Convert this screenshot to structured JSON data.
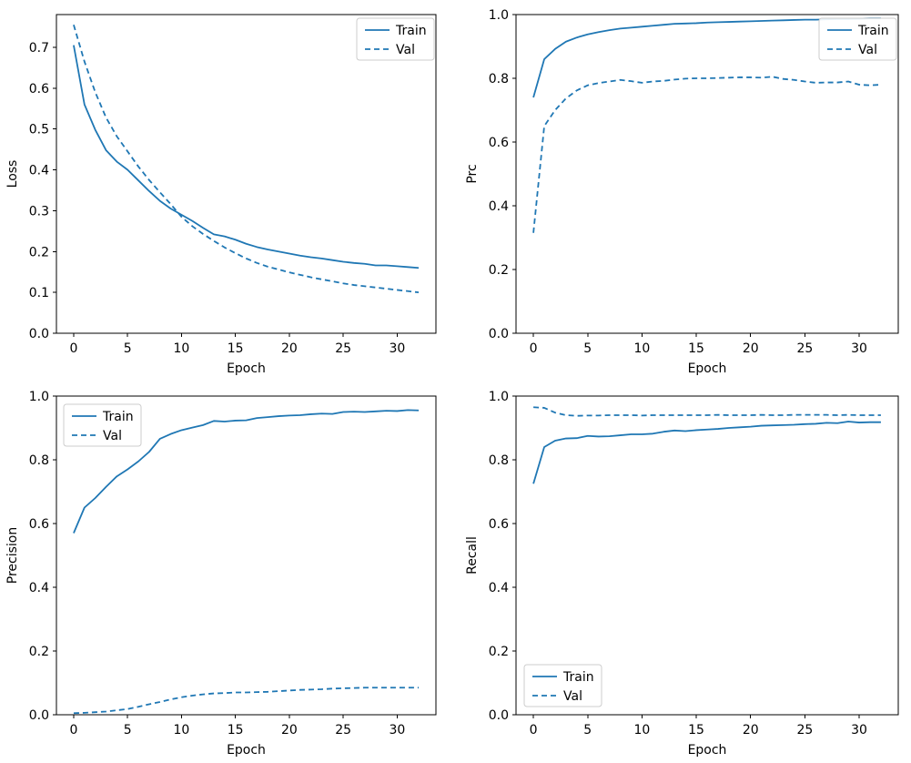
{
  "style": {
    "line_color": "#1f77b4",
    "spine_color": "#000000",
    "text_color": "#000000",
    "legend_border_color": "#cccccc",
    "legend_bg_color": "#ffffff",
    "background": "#ffffff"
  },
  "legend_labels": {
    "train": "Train",
    "val": "Val"
  },
  "chart_data": [
    {
      "type": "line",
      "title": "",
      "ylabel": "Loss",
      "xlabel": "Epoch",
      "xlim": [
        -1.6,
        33.6
      ],
      "ylim": [
        0,
        0.78
      ],
      "xticks": [
        0,
        5,
        10,
        15,
        20,
        25,
        30
      ],
      "xtick_labels": [
        "0",
        "5",
        "10",
        "15",
        "20",
        "25",
        "30"
      ],
      "yticks": [
        0,
        0.1,
        0.2,
        0.3,
        0.4,
        0.5,
        0.6,
        0.7
      ],
      "ytick_labels": [
        "0.0",
        "0.1",
        "0.2",
        "0.3",
        "0.4",
        "0.5",
        "0.6",
        "0.7"
      ],
      "grid": false,
      "legend_loc": "upper-right",
      "x": [
        0,
        1,
        2,
        3,
        4,
        5,
        6,
        7,
        8,
        9,
        10,
        11,
        12,
        13,
        14,
        15,
        16,
        17,
        18,
        19,
        20,
        21,
        22,
        23,
        24,
        25,
        26,
        27,
        28,
        29,
        30,
        31,
        32
      ],
      "series": [
        {
          "name": "Train",
          "dash": false,
          "values": [
            0.705,
            0.56,
            0.498,
            0.448,
            0.42,
            0.4,
            0.374,
            0.348,
            0.324,
            0.305,
            0.29,
            0.275,
            0.258,
            0.242,
            0.237,
            0.229,
            0.219,
            0.211,
            0.205,
            0.2,
            0.195,
            0.19,
            0.186,
            0.183,
            0.179,
            0.175,
            0.172,
            0.17,
            0.166,
            0.166,
            0.164,
            0.162,
            0.16
          ]
        },
        {
          "name": "Val",
          "dash": true,
          "values": [
            0.755,
            0.665,
            0.59,
            0.528,
            0.482,
            0.445,
            0.408,
            0.375,
            0.345,
            0.316,
            0.285,
            0.262,
            0.243,
            0.226,
            0.21,
            0.196,
            0.183,
            0.172,
            0.163,
            0.156,
            0.149,
            0.143,
            0.137,
            0.132,
            0.127,
            0.122,
            0.118,
            0.115,
            0.112,
            0.109,
            0.106,
            0.103,
            0.1
          ]
        }
      ]
    },
    {
      "type": "line",
      "title": "",
      "ylabel": "Prc",
      "xlabel": "Epoch",
      "xlim": [
        -1.6,
        33.6
      ],
      "ylim": [
        0,
        1.0
      ],
      "xticks": [
        0,
        5,
        10,
        15,
        20,
        25,
        30
      ],
      "xtick_labels": [
        "0",
        "5",
        "10",
        "15",
        "20",
        "25",
        "30"
      ],
      "yticks": [
        0,
        0.2,
        0.4,
        0.6,
        0.8,
        1.0
      ],
      "ytick_labels": [
        "0.0",
        "0.2",
        "0.4",
        "0.6",
        "0.8",
        "1.0"
      ],
      "grid": false,
      "legend_loc": "upper-right",
      "x": [
        0,
        1,
        2,
        3,
        4,
        5,
        6,
        7,
        8,
        9,
        10,
        11,
        12,
        13,
        14,
        15,
        16,
        17,
        18,
        19,
        20,
        21,
        22,
        23,
        24,
        25,
        26,
        27,
        28,
        29,
        30,
        31,
        32
      ],
      "series": [
        {
          "name": "Train",
          "dash": false,
          "values": [
            0.74,
            0.86,
            0.892,
            0.915,
            0.928,
            0.938,
            0.945,
            0.951,
            0.956,
            0.959,
            0.962,
            0.965,
            0.968,
            0.971,
            0.972,
            0.973,
            0.975,
            0.976,
            0.977,
            0.978,
            0.979,
            0.98,
            0.981,
            0.982,
            0.983,
            0.984,
            0.984,
            0.985,
            0.986,
            0.986,
            0.987,
            0.988,
            0.988
          ]
        },
        {
          "name": "Val",
          "dash": true,
          "values": [
            0.315,
            0.65,
            0.7,
            0.737,
            0.762,
            0.778,
            0.785,
            0.79,
            0.795,
            0.791,
            0.786,
            0.79,
            0.792,
            0.796,
            0.799,
            0.8,
            0.8,
            0.801,
            0.802,
            0.803,
            0.803,
            0.802,
            0.805,
            0.798,
            0.795,
            0.79,
            0.786,
            0.787,
            0.787,
            0.79,
            0.78,
            0.778,
            0.78
          ]
        }
      ]
    },
    {
      "type": "line",
      "title": "",
      "ylabel": "Precision",
      "xlabel": "Epoch",
      "xlim": [
        -1.6,
        33.6
      ],
      "ylim": [
        0,
        1.0
      ],
      "xticks": [
        0,
        5,
        10,
        15,
        20,
        25,
        30
      ],
      "xtick_labels": [
        "0",
        "5",
        "10",
        "15",
        "20",
        "25",
        "30"
      ],
      "yticks": [
        0,
        0.2,
        0.4,
        0.6,
        0.8,
        1.0
      ],
      "ytick_labels": [
        "0.0",
        "0.2",
        "0.4",
        "0.6",
        "0.8",
        "1.0"
      ],
      "grid": false,
      "legend_loc": "upper-left",
      "x": [
        0,
        1,
        2,
        3,
        4,
        5,
        6,
        7,
        8,
        9,
        10,
        11,
        12,
        13,
        14,
        15,
        16,
        17,
        18,
        19,
        20,
        21,
        22,
        23,
        24,
        25,
        26,
        27,
        28,
        29,
        30,
        31,
        32
      ],
      "series": [
        {
          "name": "Train",
          "dash": false,
          "values": [
            0.57,
            0.65,
            0.68,
            0.715,
            0.748,
            0.77,
            0.795,
            0.825,
            0.866,
            0.881,
            0.893,
            0.901,
            0.909,
            0.922,
            0.92,
            0.923,
            0.924,
            0.931,
            0.934,
            0.937,
            0.939,
            0.94,
            0.943,
            0.945,
            0.944,
            0.95,
            0.951,
            0.95,
            0.952,
            0.954,
            0.953,
            0.956,
            0.955
          ]
        },
        {
          "name": "Val",
          "dash": true,
          "values": [
            0.005,
            0.006,
            0.008,
            0.01,
            0.014,
            0.018,
            0.025,
            0.033,
            0.04,
            0.048,
            0.055,
            0.06,
            0.064,
            0.067,
            0.068,
            0.07,
            0.07,
            0.071,
            0.072,
            0.074,
            0.076,
            0.078,
            0.079,
            0.08,
            0.082,
            0.083,
            0.084,
            0.085,
            0.085,
            0.085,
            0.085,
            0.085,
            0.085
          ]
        }
      ]
    },
    {
      "type": "line",
      "title": "",
      "ylabel": "Recall",
      "xlabel": "Epoch",
      "xlim": [
        -1.6,
        33.6
      ],
      "ylim": [
        0,
        1.0
      ],
      "xticks": [
        0,
        5,
        10,
        15,
        20,
        25,
        30
      ],
      "xtick_labels": [
        "0",
        "5",
        "10",
        "15",
        "20",
        "25",
        "30"
      ],
      "yticks": [
        0,
        0.2,
        0.4,
        0.6,
        0.8,
        1.0
      ],
      "ytick_labels": [
        "0.0",
        "0.2",
        "0.4",
        "0.6",
        "0.8",
        "1.0"
      ],
      "grid": false,
      "legend_loc": "lower-left",
      "x": [
        0,
        1,
        2,
        3,
        4,
        5,
        6,
        7,
        8,
        9,
        10,
        11,
        12,
        13,
        14,
        15,
        16,
        17,
        18,
        19,
        20,
        21,
        22,
        23,
        24,
        25,
        26,
        27,
        28,
        29,
        30,
        31,
        32
      ],
      "series": [
        {
          "name": "Train",
          "dash": false,
          "values": [
            0.725,
            0.84,
            0.86,
            0.867,
            0.868,
            0.875,
            0.873,
            0.874,
            0.877,
            0.88,
            0.88,
            0.882,
            0.888,
            0.892,
            0.89,
            0.893,
            0.895,
            0.897,
            0.9,
            0.902,
            0.904,
            0.907,
            0.908,
            0.909,
            0.91,
            0.912,
            0.913,
            0.916,
            0.915,
            0.92,
            0.917,
            0.918,
            0.918
          ]
        },
        {
          "name": "Val",
          "dash": true,
          "values": [
            0.965,
            0.963,
            0.948,
            0.94,
            0.938,
            0.939,
            0.939,
            0.94,
            0.94,
            0.94,
            0.939,
            0.94,
            0.94,
            0.94,
            0.94,
            0.94,
            0.94,
            0.941,
            0.94,
            0.94,
            0.94,
            0.941,
            0.94,
            0.94,
            0.941,
            0.941,
            0.941,
            0.941,
            0.94,
            0.941,
            0.94,
            0.94,
            0.94
          ]
        }
      ]
    }
  ]
}
